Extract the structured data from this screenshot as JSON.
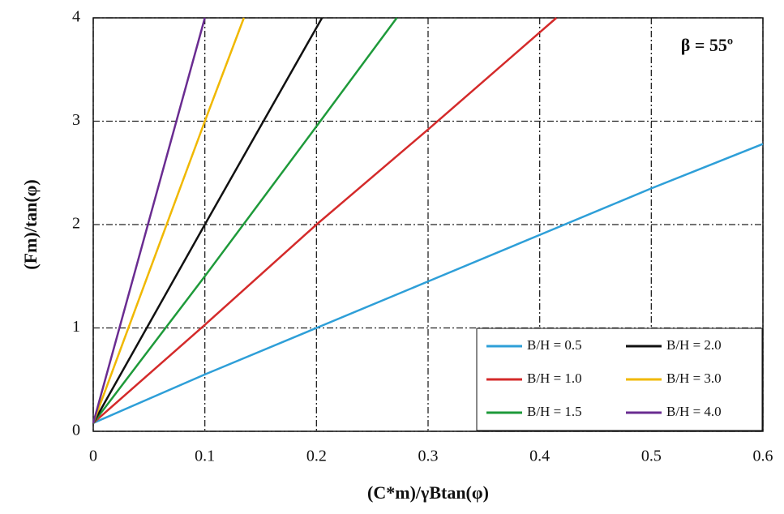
{
  "chart_data": {
    "type": "line",
    "xlabel": "(C*m)/γBtan(φ)",
    "ylabel": "(Fm)/tan(φ)",
    "annotation": "β = 55º",
    "xlim": [
      0,
      0.6
    ],
    "xticks": [
      0,
      0.1,
      0.2,
      0.3,
      0.4,
      0.5,
      0.6
    ],
    "ylim": [
      0,
      4
    ],
    "yticks": [
      0,
      1,
      2,
      3,
      4
    ],
    "grid": true,
    "legend": "lower right",
    "series": [
      {
        "name": "B/H = 0.5",
        "color": "#2e9fd8",
        "x": [
          0,
          0.1,
          0.2,
          0.3,
          0.4,
          0.5,
          0.6
        ],
        "values": [
          0.08,
          0.55,
          1.0,
          1.45,
          1.9,
          2.35,
          2.78
        ]
      },
      {
        "name": "B/H = 1.0",
        "color": "#d42a2a",
        "x": [
          0,
          0.1,
          0.2,
          0.3,
          0.415
        ],
        "values": [
          0.08,
          1.03,
          2.0,
          2.92,
          4
        ]
      },
      {
        "name": "B/H = 1.5",
        "color": "#1e9a3a",
        "x": [
          0,
          0.1,
          0.2,
          0.272
        ],
        "values": [
          0.08,
          1.5,
          2.95,
          4
        ]
      },
      {
        "name": "B/H = 2.0",
        "color": "#111111",
        "x": [
          0,
          0.1,
          0.205
        ],
        "values": [
          0.08,
          2.0,
          4
        ]
      },
      {
        "name": "B/H = 3.0",
        "color": "#f0b800",
        "x": [
          0,
          0.1,
          0.135
        ],
        "values": [
          0.08,
          3.0,
          4
        ]
      },
      {
        "name": "B/H = 4.0",
        "color": "#6a2c91",
        "x": [
          0,
          0.1
        ],
        "values": [
          0.08,
          4
        ]
      }
    ]
  }
}
